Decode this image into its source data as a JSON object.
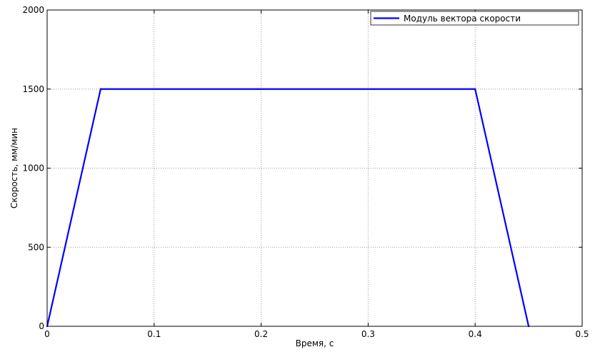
{
  "chart_data": {
    "type": "line",
    "xlabel": "Время, с",
    "ylabel": "Скорость, мм/мин",
    "xlim": [
      0,
      0.5
    ],
    "ylim": [
      0,
      2000
    ],
    "xticks": [
      0,
      0.1,
      0.2,
      0.3,
      0.4,
      0.5
    ],
    "xtick_labels": [
      "0",
      "0.1",
      "0.2",
      "0.3",
      "0.4",
      "0.5"
    ],
    "yticks": [
      0,
      500,
      1000,
      1500,
      2000
    ],
    "ytick_labels": [
      "0",
      "500",
      "1000",
      "1500",
      "2000"
    ],
    "grid": true,
    "legend_position": "top-right",
    "series": [
      {
        "name": "Модуль вектора скорости",
        "color": "#0000ff",
        "x": [
          0,
          0.05,
          0.4,
          0.45
        ],
        "y": [
          0,
          1500,
          1500,
          0
        ]
      }
    ]
  }
}
